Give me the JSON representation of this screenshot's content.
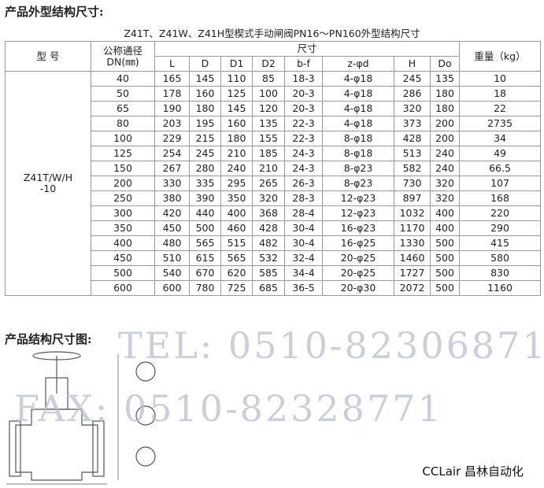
{
  "header": {
    "title": "产品外型结构尺寸:"
  },
  "table": {
    "caption": "Z41T、Z41W、Z41H型楔式手动闸阀PN16～PN160外型结构尺寸",
    "head": {
      "model": "型 号",
      "dn": "公称通径DN(㎜)",
      "size": "尺寸",
      "weight": "重量（kg）",
      "dims": [
        "L",
        "D",
        "D1",
        "D2",
        "b-f",
        "z-φd",
        "H",
        "Do"
      ]
    },
    "model": "Z41T/W/H -10",
    "rows": [
      [
        "40",
        "165",
        "145",
        "110",
        "85",
        "18-3",
        "4-φ18",
        "245",
        "135",
        "10"
      ],
      [
        "50",
        "178",
        "160",
        "125",
        "100",
        "20-3",
        "4-φ18",
        "286",
        "180",
        "18"
      ],
      [
        "65",
        "190",
        "180",
        "145",
        "120",
        "20-3",
        "4-φ18",
        "320",
        "180",
        "22"
      ],
      [
        "80",
        "203",
        "195",
        "160",
        "135",
        "22-3",
        "4-φ18",
        "373",
        "200",
        "2735"
      ],
      [
        "100",
        "229",
        "215",
        "180",
        "155",
        "22-3",
        "8-φ18",
        "428",
        "200",
        "34"
      ],
      [
        "125",
        "254",
        "245",
        "210",
        "185",
        "24-3",
        "8-φ18",
        "513",
        "240",
        "49"
      ],
      [
        "150",
        "267",
        "280",
        "240",
        "210",
        "24-3",
        "8-φ23",
        "582",
        "240",
        "66.5"
      ],
      [
        "200",
        "330",
        "335",
        "295",
        "265",
        "26-3",
        "8-φ23",
        "730",
        "320",
        "107"
      ],
      [
        "250",
        "380",
        "390",
        "350",
        "320",
        "28-3",
        "12-φ23",
        "897",
        "320",
        "168"
      ],
      [
        "300",
        "420",
        "440",
        "400",
        "368",
        "28-4",
        "12-φ23",
        "1032",
        "400",
        "220"
      ],
      [
        "350",
        "450",
        "500",
        "460",
        "428",
        "30-4",
        "16-φ23",
        "1170",
        "400",
        "290"
      ],
      [
        "400",
        "480",
        "565",
        "515",
        "482",
        "30-4",
        "16-φ25",
        "1330",
        "500",
        "415"
      ],
      [
        "450",
        "510",
        "615",
        "565",
        "532",
        "32-4",
        "20-φ25",
        "1460",
        "500",
        "580"
      ],
      [
        "500",
        "540",
        "670",
        "620",
        "585",
        "34-4",
        "20-φ25",
        "1727",
        "500",
        "830"
      ],
      [
        "600",
        "600",
        "780",
        "725",
        "685",
        "36-5",
        "20-φ30",
        "2072",
        "500",
        "1160"
      ]
    ]
  },
  "drawing": {
    "title": "产品结构尺寸图:",
    "tel": "TEL: 0510-82306871",
    "fax": "FAX: 0510-82328771",
    "brand": "CCLair 昌林自动化"
  }
}
